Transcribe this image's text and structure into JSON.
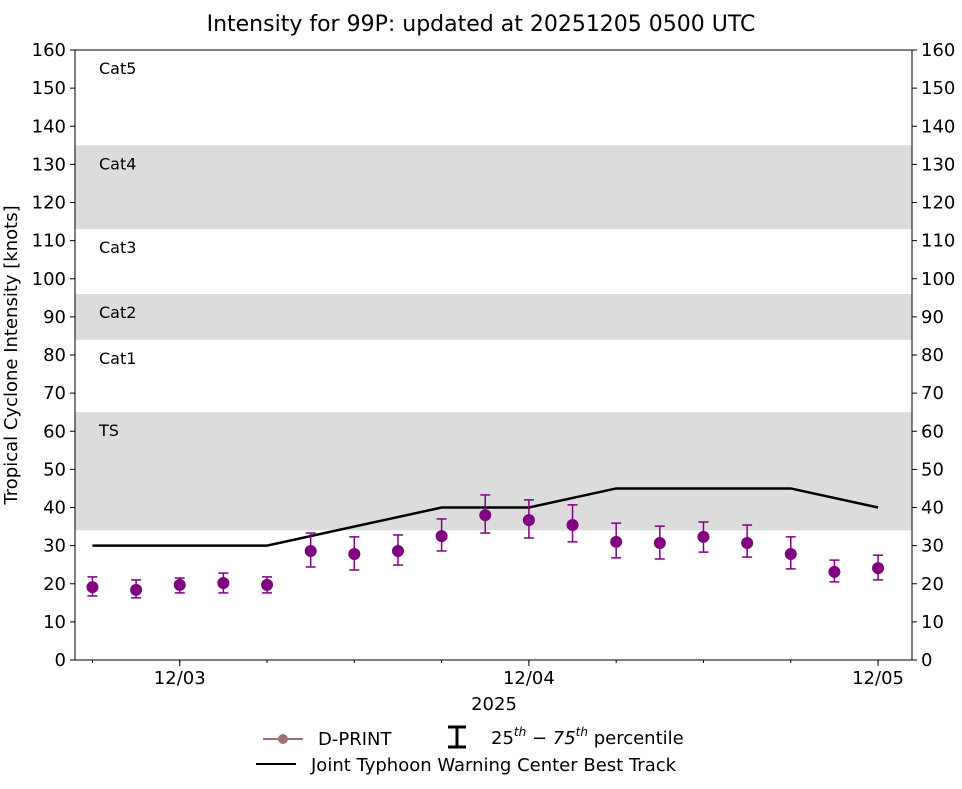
{
  "chart_data": {
    "type": "scatter",
    "title": "Intensity for 99P: updated at 20251205 0500 UTC",
    "xlabel": "2025",
    "ylabel": "Tropical Cyclone Intensity [knots]",
    "ylim": [
      0,
      160
    ],
    "yticks": [
      0,
      10,
      20,
      30,
      40,
      50,
      60,
      70,
      80,
      90,
      100,
      110,
      120,
      130,
      140,
      150,
      160
    ],
    "xlim": [
      "2025-12-02 16:48",
      "2025-12-05 02:20"
    ],
    "xticks": [
      {
        "label": "12/03",
        "x": "2025-12-03 00:00"
      },
      {
        "label": "12/04",
        "x": "2025-12-04 00:00"
      },
      {
        "label": "12/05",
        "x": "2025-12-05 00:00"
      }
    ],
    "grid": false,
    "legend_position": "bottom",
    "category_bands": [
      {
        "label": "TS",
        "min": 34,
        "max": 65,
        "shaded": true
      },
      {
        "label": "Cat1",
        "min": 65,
        "max": 84,
        "shaded": false
      },
      {
        "label": "Cat2",
        "min": 84,
        "max": 96,
        "shaded": true
      },
      {
        "label": "Cat3",
        "min": 96,
        "max": 113,
        "shaded": false
      },
      {
        "label": "Cat4",
        "min": 113,
        "max": 135,
        "shaded": true
      },
      {
        "label": "Cat5",
        "min": 135,
        "max": 160,
        "shaded": false
      }
    ],
    "series": [
      {
        "name": "D-PRINT",
        "type": "scatter-errorbar",
        "color": "#800080",
        "legend_color": "#a07070",
        "x": [
          "2025-12-02 18:00",
          "2025-12-02 21:00",
          "2025-12-03 00:00",
          "2025-12-03 03:00",
          "2025-12-03 06:00",
          "2025-12-03 09:00",
          "2025-12-03 12:00",
          "2025-12-03 15:00",
          "2025-12-03 18:00",
          "2025-12-03 21:00",
          "2025-12-04 00:00",
          "2025-12-04 03:00",
          "2025-12-04 06:00",
          "2025-12-04 09:00",
          "2025-12-04 12:00",
          "2025-12-04 15:00",
          "2025-12-04 18:00",
          "2025-12-04 21:00",
          "2025-12-05 00:00"
        ],
        "y": [
          19.1,
          18.4,
          19.7,
          20.2,
          19.7,
          28.6,
          27.8,
          28.6,
          32.5,
          38.0,
          36.7,
          35.4,
          31.0,
          30.7,
          32.3,
          30.7,
          27.8,
          23.1,
          24.1
        ],
        "p25": [
          16.8,
          16.3,
          17.6,
          17.6,
          17.6,
          24.4,
          23.6,
          24.9,
          28.6,
          33.3,
          32.0,
          31.0,
          26.8,
          26.5,
          28.3,
          27.0,
          23.9,
          20.5,
          21.0
        ],
        "p75": [
          21.8,
          21.0,
          21.5,
          22.8,
          21.8,
          33.3,
          32.3,
          32.8,
          37.0,
          43.3,
          42.0,
          40.7,
          35.9,
          35.1,
          36.2,
          35.4,
          32.3,
          26.2,
          27.5
        ]
      },
      {
        "name": "Joint Typhoon Warning Center Best Track",
        "type": "line",
        "color": "#000000",
        "x": [
          "2025-12-02 18:00",
          "2025-12-03 06:00",
          "2025-12-03 18:00",
          "2025-12-04 00:00",
          "2025-12-04 06:00",
          "2025-12-04 18:00",
          "2025-12-05 00:00"
        ],
        "y": [
          30,
          30,
          40,
          40,
          45,
          45,
          40
        ]
      }
    ],
    "legend": {
      "dprint": "D-PRINT",
      "percentile_pre": "25",
      "percentile_sup1": "th",
      "percentile_mid": " − 75",
      "percentile_sup2": "th",
      "percentile_post": " percentile",
      "best_track": "Joint Typhoon Warning Center Best Track"
    },
    "band_color": "#dcdcdc"
  }
}
